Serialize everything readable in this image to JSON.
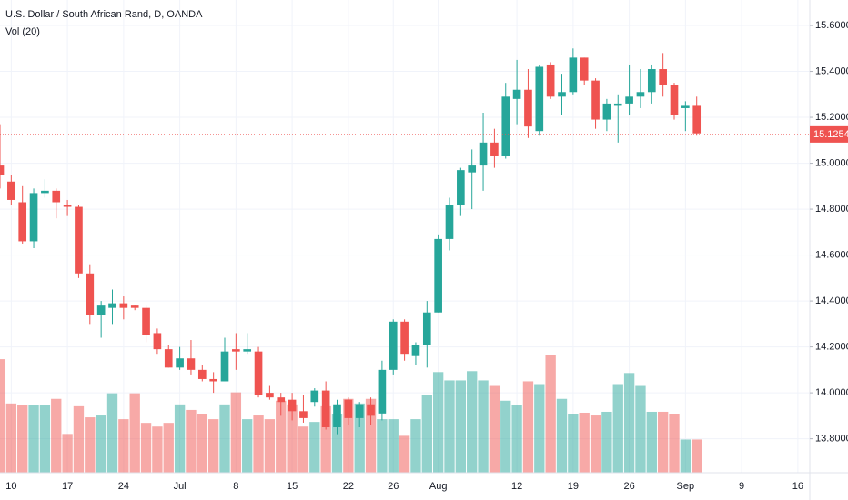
{
  "chart_data": {
    "type": "candlestick",
    "title": "U.S. Dollar / South African Rand, D, OANDA",
    "indicator": "Vol (20)",
    "categories": [
      null,
      "10",
      null,
      null,
      null,
      null,
      "17",
      null,
      null,
      null,
      null,
      "24",
      null,
      null,
      null,
      null,
      "Jul",
      null,
      null,
      null,
      null,
      "8",
      null,
      null,
      null,
      null,
      "15",
      null,
      null,
      null,
      null,
      "22",
      null,
      null,
      null,
      "26",
      null,
      null,
      null,
      "Aug",
      null,
      null,
      null,
      null,
      null,
      null,
      "12",
      null,
      null,
      null,
      null,
      "19",
      null,
      null,
      null,
      null,
      "26",
      null,
      null,
      null,
      null,
      "Sep",
      null,
      null,
      null,
      null,
      "9",
      null,
      null,
      null,
      null,
      "16"
    ],
    "open": [
      14.99,
      14.92,
      14.83,
      14.66,
      14.87,
      14.88,
      14.82,
      14.81,
      14.52,
      14.34,
      14.37,
      14.39,
      14.38,
      14.37,
      14.26,
      14.19,
      14.11,
      14.15,
      14.1,
      14.06,
      14.05,
      14.19,
      14.18,
      14.18,
      14.0,
      13.98,
      13.97,
      13.92,
      13.96,
      14.01,
      13.85,
      13.97,
      13.89,
      13.95,
      13.91,
      14.1,
      14.31,
      14.16,
      14.21,
      14.35,
      14.67,
      14.82,
      14.96,
      14.99,
      15.09,
      15.03,
      15.28,
      15.32,
      15.14,
      15.43,
      15.29,
      15.31,
      15.46,
      15.36,
      15.19,
      15.25,
      15.26,
      15.29,
      15.31,
      15.41,
      15.34,
      15.24,
      15.25,
      null,
      null,
      null,
      null,
      null,
      null,
      null,
      null,
      null
    ],
    "high": [
      15.17,
      14.95,
      14.9,
      14.89,
      14.93,
      14.89,
      14.84,
      14.82,
      14.56,
      14.4,
      14.45,
      14.42,
      14.38,
      14.38,
      14.28,
      14.21,
      14.2,
      14.23,
      14.12,
      14.09,
      14.24,
      14.26,
      14.26,
      14.2,
      14.03,
      14.0,
      14.0,
      13.99,
      14.02,
      14.05,
      13.97,
      13.98,
      13.96,
      13.98,
      14.14,
      14.32,
      14.32,
      14.22,
      14.4,
      14.69,
      14.85,
      14.98,
      15.06,
      15.22,
      15.15,
      15.35,
      15.45,
      15.41,
      15.43,
      15.44,
      15.39,
      15.5,
      15.46,
      15.37,
      15.28,
      15.3,
      15.43,
      15.41,
      15.43,
      15.48,
      15.35,
      15.27,
      15.29,
      null,
      null,
      null,
      null,
      null,
      null,
      null,
      null,
      null
    ],
    "low": [
      14.89,
      14.82,
      14.65,
      14.63,
      14.85,
      14.76,
      14.77,
      14.5,
      14.3,
      14.24,
      14.3,
      14.32,
      14.36,
      14.22,
      14.17,
      14.11,
      14.1,
      14.08,
      14.05,
      14.0,
      14.05,
      14.1,
      14.17,
      13.98,
      13.97,
      13.9,
      13.88,
      13.87,
      13.94,
      13.84,
      13.82,
      13.86,
      13.85,
      13.86,
      13.88,
      14.08,
      14.14,
      14.12,
      14.11,
      14.35,
      14.62,
      14.77,
      14.8,
      14.88,
      14.98,
      15.02,
      15.17,
      15.11,
      15.12,
      15.28,
      15.21,
      15.3,
      15.34,
      15.15,
      15.14,
      15.09,
      15.21,
      15.24,
      15.26,
      15.29,
      15.19,
      15.14,
      15.12,
      null,
      null,
      null,
      null,
      null,
      null,
      null,
      null,
      null
    ],
    "close": [
      14.95,
      14.84,
      14.66,
      14.87,
      14.88,
      14.83,
      14.81,
      14.52,
      14.34,
      14.38,
      14.39,
      14.37,
      14.37,
      14.25,
      14.19,
      14.11,
      14.15,
      14.1,
      14.06,
      14.05,
      14.18,
      14.18,
      14.19,
      13.99,
      13.98,
      13.96,
      13.92,
      13.89,
      14.01,
      13.85,
      13.95,
      13.89,
      13.95,
      13.9,
      14.1,
      14.31,
      14.17,
      14.21,
      14.35,
      14.67,
      14.82,
      14.97,
      14.99,
      15.09,
      15.03,
      15.29,
      15.32,
      15.16,
      15.42,
      15.29,
      15.31,
      15.46,
      15.36,
      15.19,
      15.26,
      15.26,
      15.29,
      15.31,
      15.41,
      15.34,
      15.21,
      15.25,
      15.13,
      null,
      null,
      null,
      null,
      null,
      null,
      null,
      null,
      null
    ],
    "volume": [
      123,
      75,
      73,
      73,
      73,
      80,
      42,
      72,
      60,
      62,
      86,
      58,
      86,
      54,
      50,
      54,
      74,
      68,
      64,
      58,
      74,
      87,
      58,
      62,
      58,
      78,
      74,
      50,
      55,
      72,
      64,
      80,
      75,
      80,
      58,
      58,
      40,
      58,
      84,
      109,
      100,
      100,
      110,
      100,
      94,
      78,
      73,
      99,
      96,
      128,
      80,
      64,
      65,
      62,
      66,
      96,
      108,
      94,
      66,
      66,
      64,
      36,
      36,
      null,
      null,
      null,
      null,
      null,
      null,
      null,
      null,
      null
    ],
    "up_color": "#26a69a",
    "down_color": "#ef5350",
    "ylim": [
      13.652,
      15.711
    ],
    "yticks": [
      {
        "value": 13.8,
        "label": "13.80000"
      },
      {
        "value": 14.0,
        "label": "14.00000"
      },
      {
        "value": 14.2,
        "label": "14.20000"
      },
      {
        "value": 14.4,
        "label": "14.40000"
      },
      {
        "value": 14.6,
        "label": "14.60000"
      },
      {
        "value": 14.8,
        "label": "14.80000"
      },
      {
        "value": 15.0,
        "label": "15.00000"
      },
      {
        "value": 15.2,
        "label": "15.20000"
      },
      {
        "value": 15.4,
        "label": "15.40000"
      },
      {
        "value": 15.6,
        "label": "15.60000"
      }
    ],
    "last_price": 15.12549,
    "grid": true
  }
}
